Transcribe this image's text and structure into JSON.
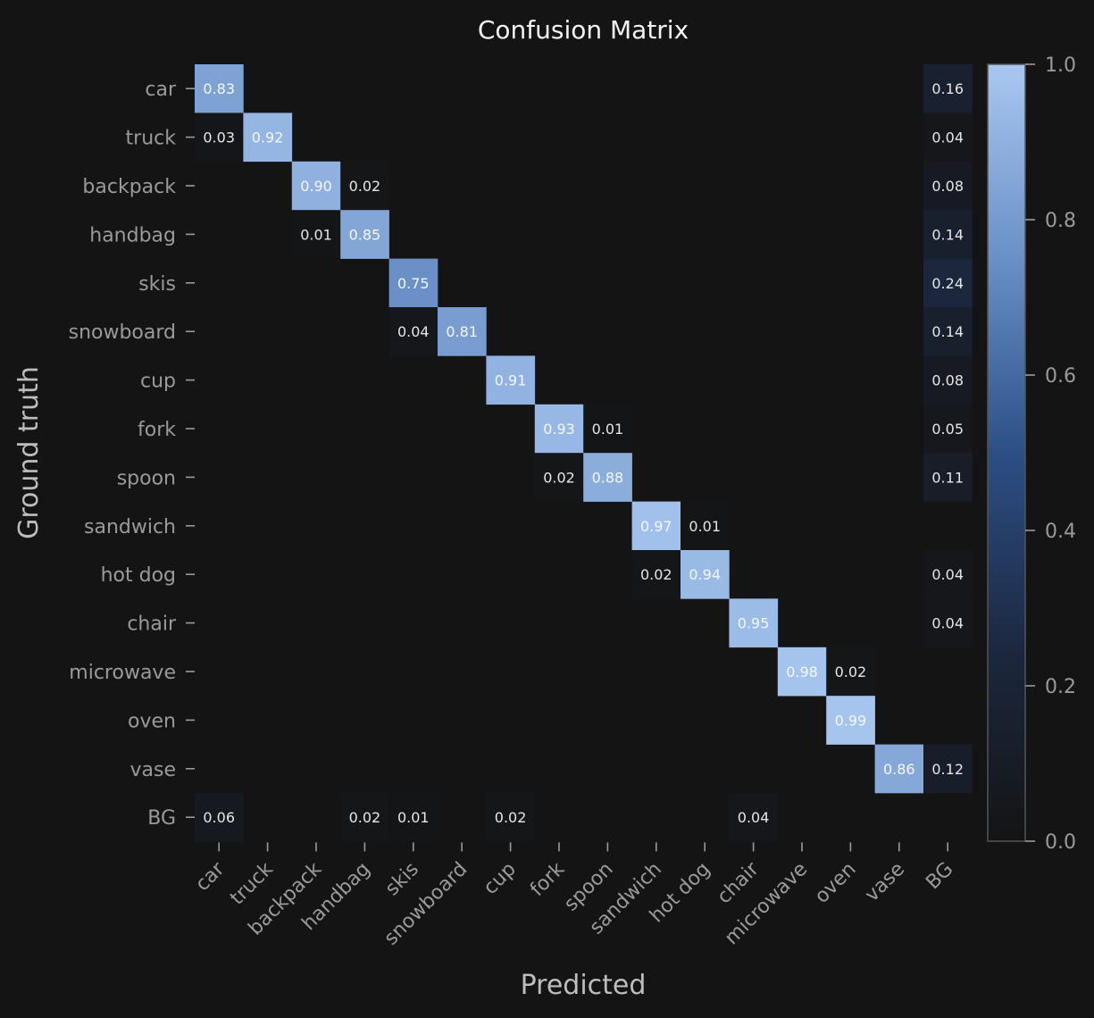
{
  "chart_data": {
    "type": "heatmap",
    "title": "Confusion Matrix",
    "xlabel": "Predicted",
    "ylabel": "Ground truth",
    "rows": [
      "car",
      "truck",
      "backpack",
      "handbag",
      "skis",
      "snowboard",
      "cup",
      "fork",
      "spoon",
      "sandwich",
      "hot dog",
      "chair",
      "microwave",
      "oven",
      "vase",
      "BG"
    ],
    "columns": [
      "car",
      "truck",
      "backpack",
      "handbag",
      "skis",
      "snowboard",
      "cup",
      "fork",
      "spoon",
      "sandwich",
      "hot dog",
      "chair",
      "microwave",
      "oven",
      "vase",
      "BG"
    ],
    "cells": [
      {
        "row": 0,
        "col": 0,
        "value": 0.83,
        "label": "0.83"
      },
      {
        "row": 0,
        "col": 15,
        "value": 0.16,
        "label": "0.16"
      },
      {
        "row": 1,
        "col": 0,
        "value": 0.03,
        "label": "0.03"
      },
      {
        "row": 1,
        "col": 1,
        "value": 0.92,
        "label": "0.92"
      },
      {
        "row": 1,
        "col": 15,
        "value": 0.04,
        "label": "0.04"
      },
      {
        "row": 2,
        "col": 2,
        "value": 0.9,
        "label": "0.90"
      },
      {
        "row": 2,
        "col": 3,
        "value": 0.02,
        "label": "0.02"
      },
      {
        "row": 2,
        "col": 15,
        "value": 0.08,
        "label": "0.08"
      },
      {
        "row": 3,
        "col": 2,
        "value": 0.01,
        "label": "0.01"
      },
      {
        "row": 3,
        "col": 3,
        "value": 0.85,
        "label": "0.85"
      },
      {
        "row": 3,
        "col": 15,
        "value": 0.14,
        "label": "0.14"
      },
      {
        "row": 4,
        "col": 4,
        "value": 0.75,
        "label": "0.75"
      },
      {
        "row": 4,
        "col": 15,
        "value": 0.24,
        "label": "0.24"
      },
      {
        "row": 5,
        "col": 4,
        "value": 0.04,
        "label": "0.04"
      },
      {
        "row": 5,
        "col": 5,
        "value": 0.81,
        "label": "0.81"
      },
      {
        "row": 5,
        "col": 15,
        "value": 0.14,
        "label": "0.14"
      },
      {
        "row": 6,
        "col": 6,
        "value": 0.91,
        "label": "0.91"
      },
      {
        "row": 6,
        "col": 15,
        "value": 0.08,
        "label": "0.08"
      },
      {
        "row": 7,
        "col": 7,
        "value": 0.93,
        "label": "0.93"
      },
      {
        "row": 7,
        "col": 8,
        "value": 0.01,
        "label": "0.01"
      },
      {
        "row": 7,
        "col": 15,
        "value": 0.05,
        "label": "0.05"
      },
      {
        "row": 8,
        "col": 7,
        "value": 0.02,
        "label": "0.02"
      },
      {
        "row": 8,
        "col": 8,
        "value": 0.88,
        "label": "0.88"
      },
      {
        "row": 8,
        "col": 15,
        "value": 0.11,
        "label": "0.11"
      },
      {
        "row": 9,
        "col": 9,
        "value": 0.97,
        "label": "0.97"
      },
      {
        "row": 9,
        "col": 10,
        "value": 0.01,
        "label": "0.01"
      },
      {
        "row": 10,
        "col": 9,
        "value": 0.02,
        "label": "0.02"
      },
      {
        "row": 10,
        "col": 10,
        "value": 0.94,
        "label": "0.94"
      },
      {
        "row": 10,
        "col": 15,
        "value": 0.04,
        "label": "0.04"
      },
      {
        "row": 11,
        "col": 11,
        "value": 0.95,
        "label": "0.95"
      },
      {
        "row": 11,
        "col": 15,
        "value": 0.04,
        "label": "0.04"
      },
      {
        "row": 12,
        "col": 12,
        "value": 0.98,
        "label": "0.98"
      },
      {
        "row": 12,
        "col": 13,
        "value": 0.02,
        "label": "0.02"
      },
      {
        "row": 13,
        "col": 13,
        "value": 0.99,
        "label": "0.99"
      },
      {
        "row": 14,
        "col": 14,
        "value": 0.86,
        "label": "0.86"
      },
      {
        "row": 14,
        "col": 15,
        "value": 0.12,
        "label": "0.12"
      },
      {
        "row": 15,
        "col": 0,
        "value": 0.06,
        "label": "0.06"
      },
      {
        "row": 15,
        "col": 3,
        "value": 0.02,
        "label": "0.02"
      },
      {
        "row": 15,
        "col": 4,
        "value": 0.01,
        "label": "0.01"
      },
      {
        "row": 15,
        "col": 6,
        "value": 0.02,
        "label": "0.02"
      },
      {
        "row": 15,
        "col": 11,
        "value": 0.04,
        "label": "0.04"
      }
    ],
    "colorbar": {
      "range": [
        0.0,
        1.0
      ],
      "ticks": [
        {
          "value": 0.0,
          "label": "0.0"
        },
        {
          "value": 0.2,
          "label": "0.2"
        },
        {
          "value": 0.4,
          "label": "0.4"
        },
        {
          "value": 0.6,
          "label": "0.6"
        },
        {
          "value": 0.8,
          "label": "0.8"
        },
        {
          "value": 1.0,
          "label": "1.0"
        }
      ]
    },
    "colors": {
      "background": "#141414",
      "colormap": [
        "#141414",
        "#1c2840",
        "#2c4f86",
        "#6a90c7",
        "#a9c7f0"
      ],
      "tick_label": "#9a9a9a",
      "axis_label": "#bdbdbd",
      "title": "#f2f2f2"
    }
  }
}
